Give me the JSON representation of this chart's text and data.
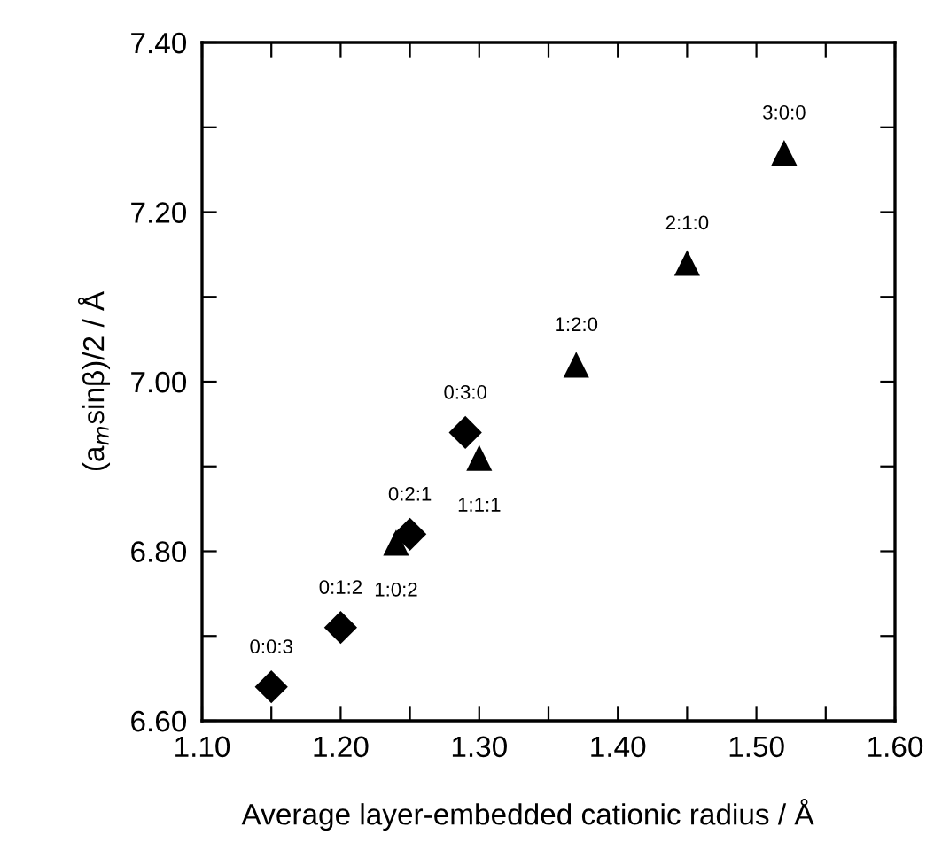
{
  "chart_data": {
    "type": "scatter",
    "xlabel": "Average layer-embedded cationic radius / Å",
    "ylabel": "(a$_{m}$sinβ)/2 / Å",
    "series": [
      {
        "color": "#000000",
        "marker": "diamond",
        "x": [
          1.15,
          1.2,
          1.25,
          1.29
        ],
        "values": [
          6.64,
          6.71,
          6.82,
          6.94
        ]
      },
      {
        "color": "#000000",
        "marker": "triangle",
        "x": [
          1.24,
          1.3,
          1.37,
          1.45,
          1.52
        ],
        "values": [
          6.81,
          6.91,
          7.02,
          7.14,
          7.27
        ]
      }
    ],
    "annotations": [
      {
        "text": "0:0:3",
        "x": 1.15,
        "y": 6.64
      },
      {
        "text": "0:1:2",
        "x": 1.2,
        "y": 6.71
      },
      {
        "text": "0:2:1",
        "x": 1.25,
        "y": 6.82
      },
      {
        "text": "0:3:0",
        "x": 1.29,
        "y": 6.94
      },
      {
        "text": "1:0:2",
        "x": 1.24,
        "y": 6.81
      },
      {
        "text": "1:1:1",
        "x": 1.3,
        "y": 6.91
      },
      {
        "text": "1:2:0",
        "x": 1.37,
        "y": 7.02
      },
      {
        "text": "2:1:0",
        "x": 1.45,
        "y": 7.14
      },
      {
        "text": "3:0:0",
        "x": 1.52,
        "y": 7.27
      }
    ],
    "xlim": [
      1.1,
      1.6
    ],
    "xticks": [
      {
        "value": 1.1,
        "label": "1.10"
      },
      {
        "value": 1.15,
        "label": null
      },
      {
        "value": 1.2,
        "label": "1.20"
      },
      {
        "value": 1.25,
        "label": null
      },
      {
        "value": 1.3,
        "label": "1.30"
      },
      {
        "value": 1.35,
        "label": null
      },
      {
        "value": 1.4,
        "label": "1.40"
      },
      {
        "value": 1.45,
        "label": null
      },
      {
        "value": 1.5,
        "label": "1.50"
      },
      {
        "value": 1.55,
        "label": null
      },
      {
        "value": 1.6,
        "label": "1.60"
      }
    ],
    "ylim": [
      6.6,
      7.4
    ],
    "yticks": [
      {
        "value": 6.6,
        "label": "6.60"
      },
      {
        "value": 6.7,
        "label": null
      },
      {
        "value": 6.8,
        "label": "6.80"
      },
      {
        "value": 6.9,
        "label": null
      },
      {
        "value": 7.0,
        "label": "7.00"
      },
      {
        "value": 7.1,
        "label": null
      },
      {
        "value": 7.2,
        "label": "7.20"
      },
      {
        "value": 7.3,
        "label": null
      },
      {
        "value": 7.4,
        "label": "7.40"
      }
    ],
    "grid": false,
    "legend": false
  }
}
